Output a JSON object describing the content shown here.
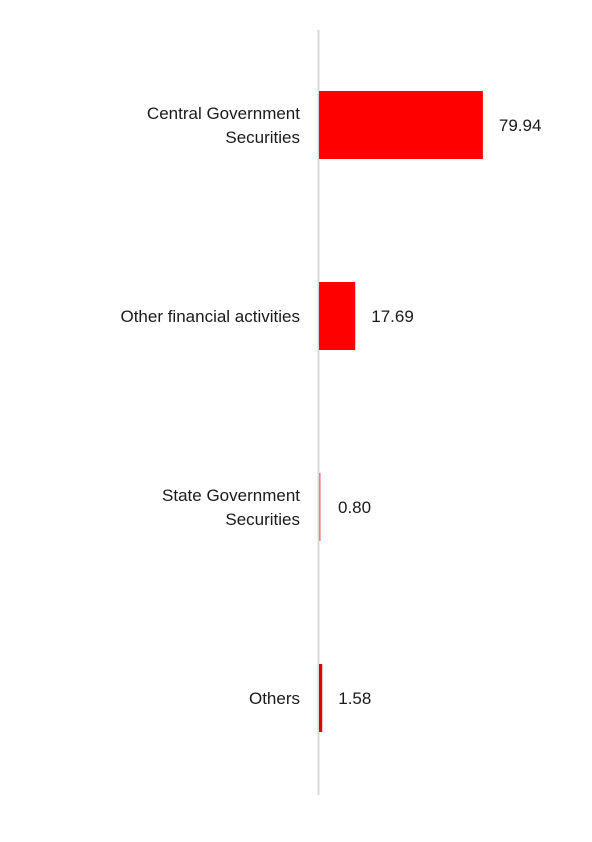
{
  "chart_data": {
    "type": "bar",
    "orientation": "horizontal",
    "categories": [
      "Central Government Securities",
      "Other financial activities",
      "State Government Securities",
      "Others"
    ],
    "values": [
      79.94,
      17.69,
      0.8,
      1.58
    ],
    "value_labels": [
      "79.94",
      "17.69",
      "0.80",
      "1.58"
    ],
    "bar_colors": [
      "#ff0000",
      "#ff0000",
      "#f08080",
      "#e00000"
    ],
    "axis_color": "#d9d9d9",
    "title": "",
    "xlabel": "",
    "ylabel": "",
    "xlim": [
      0,
      80
    ],
    "grid": false,
    "legend": "none"
  }
}
